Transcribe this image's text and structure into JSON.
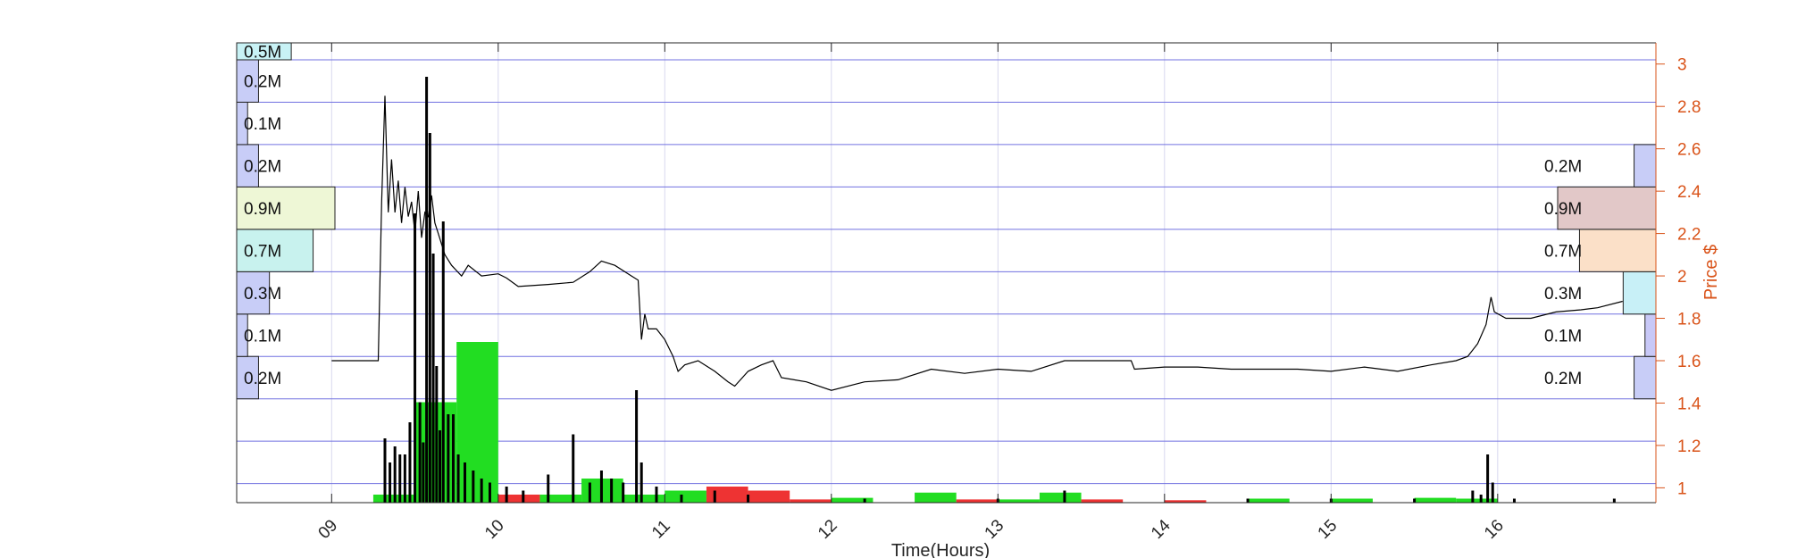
{
  "chart_data": {
    "type": "bar",
    "xlabel": "Time(Hours)",
    "ylabel": "Price $",
    "xlim": [
      8.43,
      16.95
    ],
    "ylim": [
      0.93,
      3.1
    ],
    "x_ticks": [
      9,
      10,
      11,
      12,
      13,
      14,
      15,
      16
    ],
    "x_tick_labels": [
      "09",
      "10",
      "11",
      "12",
      "13",
      "14",
      "15",
      "16"
    ],
    "y_ticks": [
      1,
      1.2,
      1.4,
      1.6,
      1.8,
      2,
      2.2,
      2.4,
      2.6,
      2.8,
      3
    ],
    "y_tick_labels": [
      "1",
      "1.2",
      "1.4",
      "1.6",
      "1.8",
      "2",
      "2.2",
      "2.4",
      "2.6",
      "2.8",
      "3"
    ],
    "grid": true,
    "price_bins": [
      1.02,
      1.22,
      1.42,
      1.62,
      1.82,
      2.02,
      2.22,
      2.42,
      2.62,
      2.82,
      3.02
    ],
    "left_volume_profile": {
      "bins": [
        {
          "low": 1.42,
          "high": 1.62,
          "label": "0.2M",
          "volume": 0.2,
          "color": "#c8cdf7"
        },
        {
          "low": 1.62,
          "high": 1.82,
          "label": "0.1M",
          "volume": 0.1,
          "color": "#c8cdf7"
        },
        {
          "low": 1.82,
          "high": 2.02,
          "label": "0.3M",
          "volume": 0.3,
          "color": "#c8cdf7"
        },
        {
          "low": 2.02,
          "high": 2.22,
          "label": "0.7M",
          "volume": 0.7,
          "color": "#c8f2ee"
        },
        {
          "low": 2.22,
          "high": 2.42,
          "label": "0.9M",
          "volume": 0.9,
          "color": "#eef7d6"
        },
        {
          "low": 2.42,
          "high": 2.62,
          "label": "0.2M",
          "volume": 0.2,
          "color": "#c8cdf7"
        },
        {
          "low": 2.62,
          "high": 2.82,
          "label": "0.1M",
          "volume": 0.1,
          "color": "#c8cdf7"
        },
        {
          "low": 2.82,
          "high": 3.02,
          "label": "0.2M",
          "volume": 0.2,
          "color": "#c8cdf7"
        },
        {
          "low": 3.02,
          "high": 3.1,
          "label": "0.5M",
          "volume": 0.5,
          "color": "#c8f2f5"
        }
      ]
    },
    "right_volume_profile": {
      "bins": [
        {
          "low": 1.42,
          "high": 1.62,
          "label": "0.2M",
          "volume": 0.2,
          "color": "#c8cdf7"
        },
        {
          "low": 1.62,
          "high": 1.82,
          "label": "0.1M",
          "volume": 0.1,
          "color": "#c8c8f7"
        },
        {
          "low": 1.82,
          "high": 2.02,
          "label": "0.3M",
          "volume": 0.3,
          "color": "#c8f0f7"
        },
        {
          "low": 2.02,
          "high": 2.22,
          "label": "0.7M",
          "volume": 0.7,
          "color": "#fbe0c8"
        },
        {
          "low": 2.22,
          "high": 2.42,
          "label": "0.9M",
          "volume": 0.9,
          "color": "#e2c8c8"
        },
        {
          "low": 2.42,
          "high": 2.62,
          "label": "0.2M",
          "volume": 0.2,
          "color": "#c8cdf7"
        }
      ]
    },
    "price_series": [
      [
        9.0,
        1.6
      ],
      [
        9.28,
        1.6
      ],
      [
        9.3,
        2.35
      ],
      [
        9.32,
        2.85
      ],
      [
        9.34,
        2.3
      ],
      [
        9.36,
        2.55
      ],
      [
        9.38,
        2.3
      ],
      [
        9.4,
        2.45
      ],
      [
        9.42,
        2.25
      ],
      [
        9.44,
        2.42
      ],
      [
        9.46,
        2.28
      ],
      [
        9.48,
        2.35
      ],
      [
        9.5,
        2.2
      ],
      [
        9.52,
        2.4
      ],
      [
        9.54,
        2.18
      ],
      [
        9.56,
        2.3
      ],
      [
        9.58,
        2.28
      ],
      [
        9.6,
        2.38
      ],
      [
        9.62,
        2.25
      ],
      [
        9.64,
        2.2
      ],
      [
        9.66,
        2.15
      ],
      [
        9.68,
        2.1
      ],
      [
        9.72,
        2.05
      ],
      [
        9.78,
        2.0
      ],
      [
        9.82,
        2.05
      ],
      [
        9.9,
        2.0
      ],
      [
        10.0,
        2.01
      ],
      [
        10.05,
        1.99
      ],
      [
        10.12,
        1.95
      ],
      [
        10.3,
        1.96
      ],
      [
        10.45,
        1.97
      ],
      [
        10.55,
        2.02
      ],
      [
        10.62,
        2.07
      ],
      [
        10.7,
        2.05
      ],
      [
        10.8,
        2.0
      ],
      [
        10.84,
        1.98
      ],
      [
        10.86,
        1.7
      ],
      [
        10.88,
        1.82
      ],
      [
        10.9,
        1.75
      ],
      [
        10.95,
        1.75
      ],
      [
        11.0,
        1.7
      ],
      [
        11.05,
        1.62
      ],
      [
        11.08,
        1.55
      ],
      [
        11.12,
        1.58
      ],
      [
        11.2,
        1.6
      ],
      [
        11.3,
        1.55
      ],
      [
        11.38,
        1.5
      ],
      [
        11.42,
        1.48
      ],
      [
        11.5,
        1.55
      ],
      [
        11.58,
        1.58
      ],
      [
        11.65,
        1.6
      ],
      [
        11.7,
        1.52
      ],
      [
        11.85,
        1.5
      ],
      [
        12.0,
        1.46
      ],
      [
        12.2,
        1.5
      ],
      [
        12.4,
        1.51
      ],
      [
        12.6,
        1.56
      ],
      [
        12.8,
        1.54
      ],
      [
        13.0,
        1.56
      ],
      [
        13.2,
        1.55
      ],
      [
        13.4,
        1.6
      ],
      [
        13.6,
        1.6
      ],
      [
        13.8,
        1.6
      ],
      [
        13.82,
        1.56
      ],
      [
        14.0,
        1.57
      ],
      [
        14.2,
        1.57
      ],
      [
        14.4,
        1.56
      ],
      [
        14.6,
        1.56
      ],
      [
        14.8,
        1.56
      ],
      [
        15.0,
        1.55
      ],
      [
        15.2,
        1.57
      ],
      [
        15.4,
        1.55
      ],
      [
        15.6,
        1.58
      ],
      [
        15.75,
        1.6
      ],
      [
        15.82,
        1.62
      ],
      [
        15.88,
        1.68
      ],
      [
        15.93,
        1.77
      ],
      [
        15.96,
        1.9
      ],
      [
        15.98,
        1.83
      ],
      [
        16.05,
        1.8
      ],
      [
        16.2,
        1.8
      ],
      [
        16.35,
        1.83
      ],
      [
        16.5,
        1.84
      ],
      [
        16.6,
        1.85
      ],
      [
        16.75,
        1.88
      ]
    ],
    "volume_bars": [
      [
        9.32,
        0.16
      ],
      [
        9.35,
        0.1
      ],
      [
        9.38,
        0.14
      ],
      [
        9.41,
        0.12
      ],
      [
        9.44,
        0.12
      ],
      [
        9.47,
        0.2
      ],
      [
        9.5,
        0.72
      ],
      [
        9.53,
        0.25
      ],
      [
        9.55,
        0.15
      ],
      [
        9.57,
        1.06
      ],
      [
        9.59,
        0.92
      ],
      [
        9.61,
        0.62
      ],
      [
        9.63,
        0.34
      ],
      [
        9.65,
        0.18
      ],
      [
        9.67,
        0.7
      ],
      [
        9.7,
        0.22
      ],
      [
        9.73,
        0.22
      ],
      [
        9.76,
        0.12
      ],
      [
        9.8,
        0.1
      ],
      [
        9.85,
        0.08
      ],
      [
        9.9,
        0.06
      ],
      [
        9.95,
        0.05
      ],
      [
        10.05,
        0.04
      ],
      [
        10.15,
        0.03
      ],
      [
        10.3,
        0.07
      ],
      [
        10.45,
        0.17
      ],
      [
        10.55,
        0.05
      ],
      [
        10.62,
        0.08
      ],
      [
        10.68,
        0.06
      ],
      [
        10.75,
        0.05
      ],
      [
        10.83,
        0.28
      ],
      [
        10.86,
        0.1
      ],
      [
        10.95,
        0.04
      ],
      [
        11.1,
        0.02
      ],
      [
        11.3,
        0.03
      ],
      [
        11.5,
        0.02
      ],
      [
        12.2,
        0.01
      ],
      [
        13.0,
        0.01
      ],
      [
        13.4,
        0.03
      ],
      [
        14.5,
        0.01
      ],
      [
        15.0,
        0.01
      ],
      [
        15.5,
        0.01
      ],
      [
        15.85,
        0.03
      ],
      [
        15.9,
        0.02
      ],
      [
        15.94,
        0.12
      ],
      [
        15.97,
        0.05
      ],
      [
        16.1,
        0.01
      ],
      [
        16.7,
        0.01
      ]
    ],
    "volume_blocks": [
      [
        9.25,
        9.5,
        0.02,
        "#22dd22"
      ],
      [
        9.5,
        9.75,
        0.25,
        "#22dd22"
      ],
      [
        9.75,
        10.0,
        0.4,
        "#22dd22"
      ],
      [
        10.0,
        10.25,
        0.02,
        "#ee3333"
      ],
      [
        10.25,
        10.5,
        0.02,
        "#22dd22"
      ],
      [
        10.5,
        10.75,
        0.06,
        "#22dd22"
      ],
      [
        10.75,
        11.0,
        0.02,
        "#22dd22"
      ],
      [
        11.0,
        11.25,
        0.03,
        "#22dd22"
      ],
      [
        11.25,
        11.5,
        0.04,
        "#ee3333"
      ],
      [
        11.5,
        11.75,
        0.03,
        "#ee3333"
      ],
      [
        11.75,
        12.0,
        0.008,
        "#ee3333"
      ],
      [
        12.0,
        12.25,
        0.012,
        "#22dd22"
      ],
      [
        12.5,
        12.75,
        0.025,
        "#22dd22"
      ],
      [
        12.75,
        13.0,
        0.008,
        "#ee3333"
      ],
      [
        13.0,
        13.25,
        0.008,
        "#22dd22"
      ],
      [
        13.25,
        13.5,
        0.025,
        "#22dd22"
      ],
      [
        13.5,
        13.75,
        0.008,
        "#ee3333"
      ],
      [
        14.0,
        14.25,
        0.006,
        "#ee3333"
      ],
      [
        14.5,
        14.75,
        0.01,
        "#22dd22"
      ],
      [
        15.0,
        15.25,
        0.01,
        "#22dd22"
      ],
      [
        15.5,
        15.75,
        0.012,
        "#22dd22"
      ],
      [
        15.75,
        16.0,
        0.01,
        "#22dd22"
      ]
    ],
    "colors": {
      "axis_right": "#d95319",
      "grid_horizontal": "#7070e0",
      "grid_vertical": "#d8d8ee",
      "price_line": "#000000"
    }
  }
}
